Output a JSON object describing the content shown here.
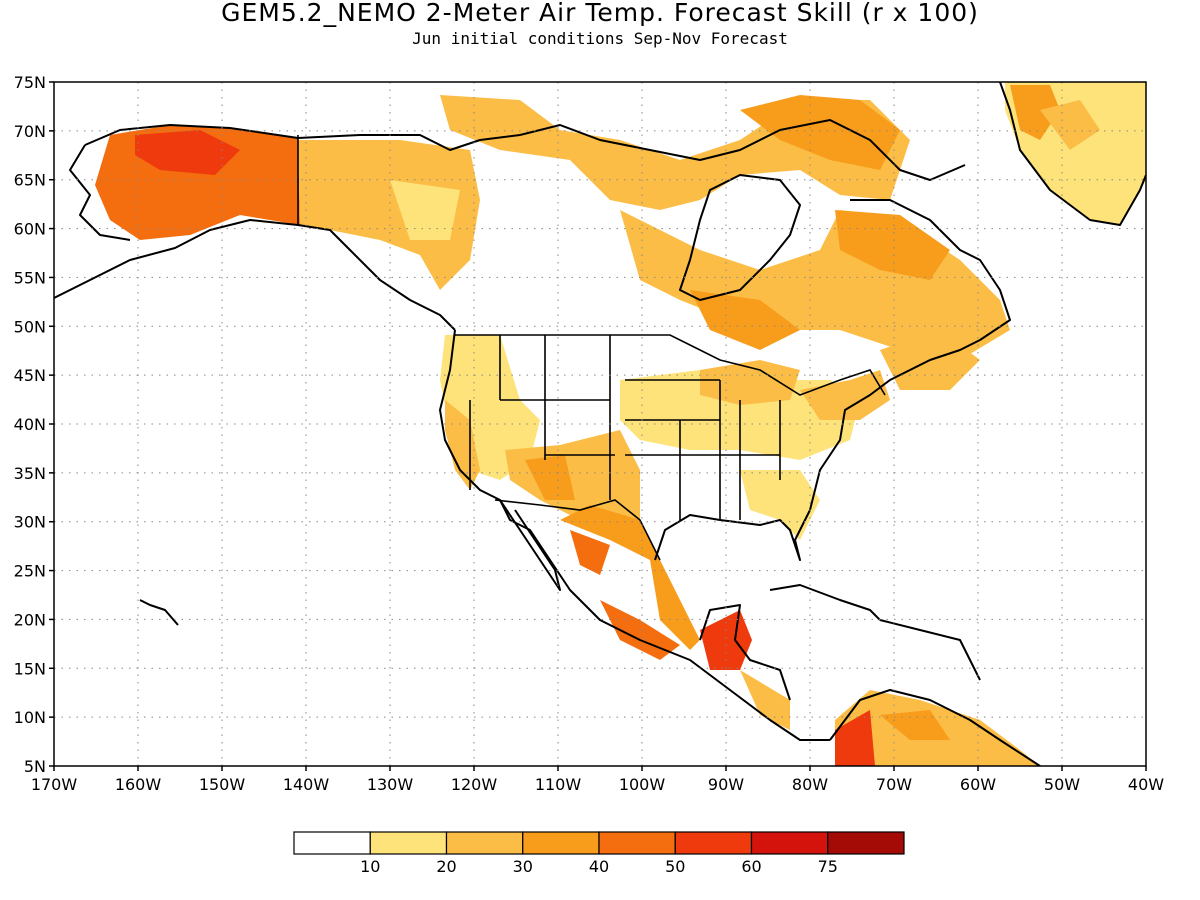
{
  "header": {
    "title": "GEM5.2_NEMO 2-Meter Air Temp. Forecast Skill (r x 100)",
    "subtitle": "Jun initial conditions  Sep-Nov Forecast"
  },
  "map": {
    "region": "North America",
    "lat_range": [
      5,
      75
    ],
    "lon_range": [
      -170,
      -40
    ],
    "lat_ticks": [
      "5N",
      "10N",
      "15N",
      "20N",
      "25N",
      "30N",
      "35N",
      "40N",
      "45N",
      "50N",
      "55N",
      "60N",
      "65N",
      "70N",
      "75N"
    ],
    "lon_ticks": [
      "170W",
      "160W",
      "150W",
      "140W",
      "130W",
      "120W",
      "110W",
      "100W",
      "90W",
      "80W",
      "70W",
      "60W",
      "50W",
      "40W"
    ],
    "grid": "dotted"
  },
  "colorbar": {
    "levels": [
      "10",
      "20",
      "30",
      "40",
      "50",
      "60",
      "75"
    ],
    "colors": [
      "#ffffff",
      "#fde37a",
      "#fbbd45",
      "#f89c1c",
      "#f46d0f",
      "#ee3a0d",
      "#d4140c",
      "#a50b06"
    ]
  }
}
